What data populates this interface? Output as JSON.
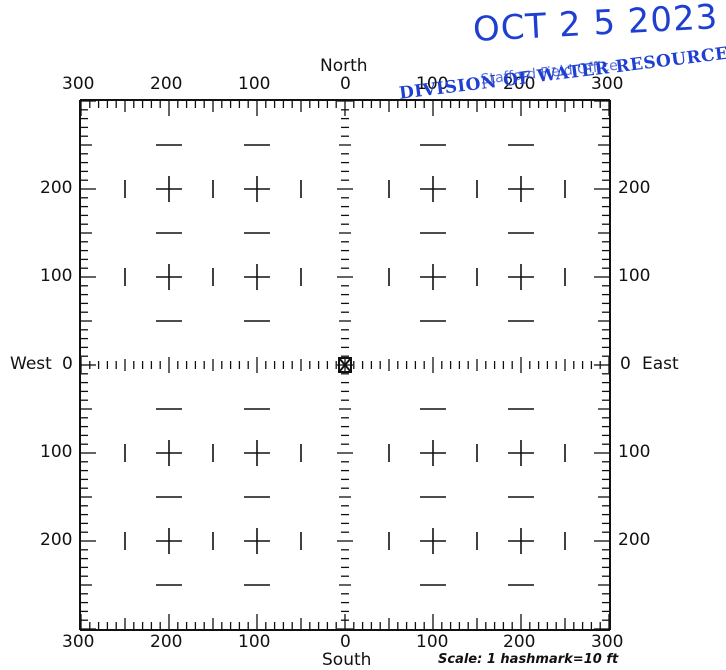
{
  "compass": {
    "north": "North",
    "south": "South",
    "west": "West",
    "east": "East"
  },
  "axis_labels": {
    "top": [
      "300",
      "200",
      "100",
      "0",
      "100",
      "200",
      "300"
    ],
    "bottom": [
      "300",
      "200",
      "100",
      "0",
      "100",
      "200",
      "300"
    ],
    "left": [
      "200",
      "100",
      "0",
      "100",
      "200"
    ],
    "right": [
      "200",
      "100",
      "0",
      "100",
      "200"
    ]
  },
  "scale_note": "Scale:  1 hashmark=10 ft",
  "stamp": {
    "date": "OCT 2 5 2023",
    "office": "Stafford Field Office",
    "agency": "DIVISION OF WATER RESOURCES"
  },
  "colors": {
    "ink": "#111111",
    "stamp": "#1f3fd0"
  }
}
